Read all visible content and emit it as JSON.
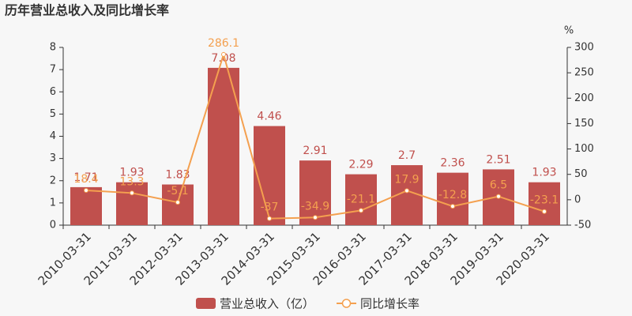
{
  "chart_data": {
    "type": "bar-line",
    "title": "历年营业总收入及同比增长率",
    "y2_unit": "%",
    "categories": [
      "2010-03-31",
      "2011-03-31",
      "2012-03-31",
      "2013-03-31",
      "2014-03-31",
      "2015-03-31",
      "2016-03-31",
      "2017-03-31",
      "2018-03-31",
      "2019-03-31",
      "2020-03-31"
    ],
    "series": [
      {
        "name": "营业总收入（亿）",
        "type": "bar",
        "color": "#c0504d",
        "values": [
          1.71,
          1.93,
          1.83,
          7.08,
          4.46,
          2.91,
          2.29,
          2.7,
          2.36,
          2.51,
          1.93
        ]
      },
      {
        "name": "同比增长率",
        "type": "line",
        "axis": "y2",
        "color": "#f4a04f",
        "values": [
          18.4,
          13.3,
          -5.1,
          286.1,
          -37,
          -34.9,
          -21.1,
          17.9,
          -12.8,
          6.5,
          -23.1
        ]
      }
    ],
    "ylim": [
      0,
      8
    ],
    "yticks": [
      0,
      1,
      2,
      3,
      4,
      5,
      6,
      7,
      8
    ],
    "y2lim": [
      -50,
      300
    ],
    "y2ticks": [
      -50,
      0,
      50,
      100,
      150,
      200,
      250,
      300
    ],
    "legend": "bottom"
  }
}
